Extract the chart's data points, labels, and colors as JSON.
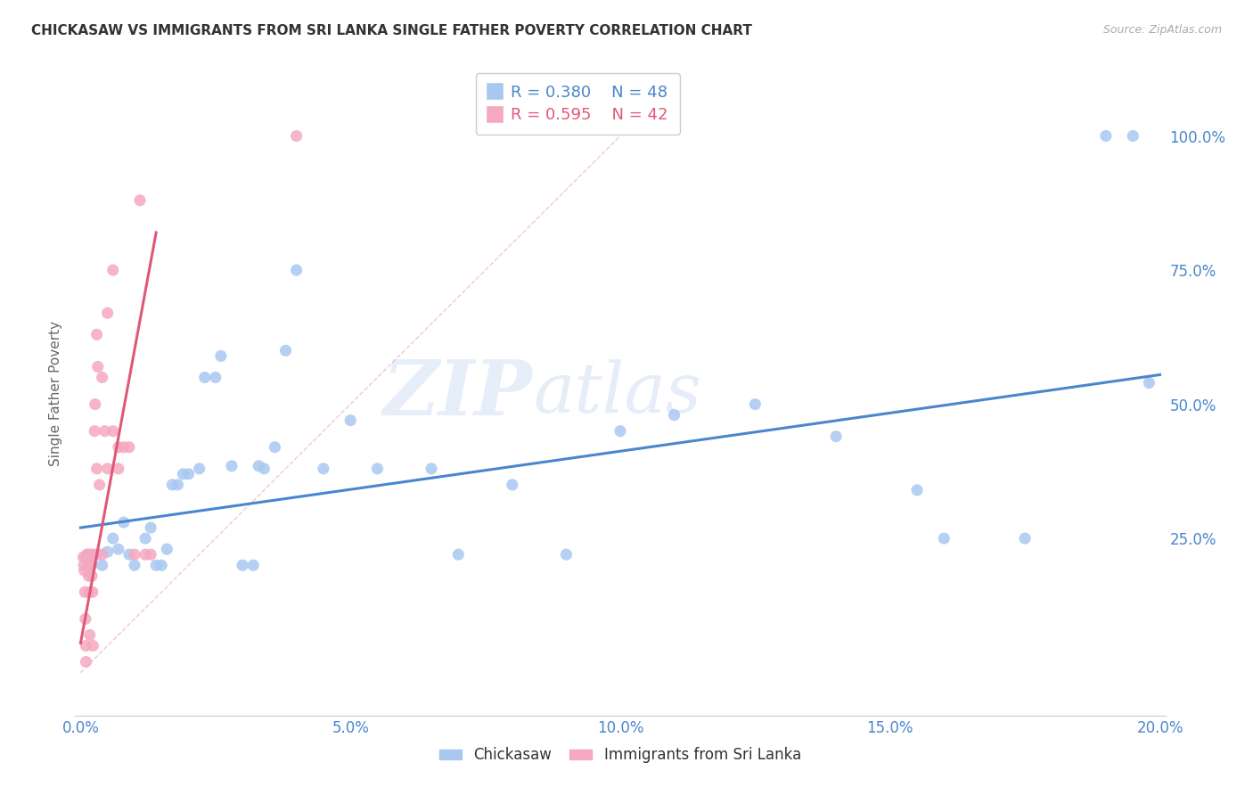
{
  "title": "CHICKASAW VS IMMIGRANTS FROM SRI LANKA SINGLE FATHER POVERTY CORRELATION CHART",
  "source": "Source: ZipAtlas.com",
  "ylabel": "Single Father Poverty",
  "blue_color": "#a8c8f0",
  "pink_color": "#f5a8c0",
  "blue_line_color": "#4a86cc",
  "pink_line_color": "#e05878",
  "ref_line_color": "#e8a0b8",
  "legend_label_blue": "Chickasaw",
  "legend_label_pink": "Immigrants from Sri Lanka",
  "xlim": [
    -0.001,
    0.201
  ],
  "ylim": [
    -0.08,
    1.12
  ],
  "xtick_values": [
    0.0,
    0.05,
    0.1,
    0.15,
    0.2
  ],
  "xtick_labels": [
    "0.0%",
    "5.0%",
    "10.0%",
    "15.0%",
    "20.0%"
  ],
  "right_ytick_values": [
    0.25,
    0.5,
    0.75,
    1.0
  ],
  "right_ytick_labels": [
    "25.0%",
    "50.0%",
    "75.0%",
    "100.0%"
  ],
  "blue_scatter_x": [
    0.001,
    0.002,
    0.003,
    0.004,
    0.005,
    0.006,
    0.007,
    0.008,
    0.009,
    0.01,
    0.012,
    0.013,
    0.014,
    0.015,
    0.016,
    0.017,
    0.018,
    0.019,
    0.02,
    0.022,
    0.023,
    0.025,
    0.026,
    0.028,
    0.03,
    0.032,
    0.033,
    0.034,
    0.036,
    0.038,
    0.04,
    0.045,
    0.05,
    0.055,
    0.065,
    0.07,
    0.08,
    0.09,
    0.1,
    0.11,
    0.125,
    0.14,
    0.155,
    0.16,
    0.175,
    0.19,
    0.195,
    0.198
  ],
  "blue_scatter_y": [
    0.215,
    0.2,
    0.22,
    0.2,
    0.225,
    0.25,
    0.23,
    0.28,
    0.22,
    0.2,
    0.25,
    0.27,
    0.2,
    0.2,
    0.23,
    0.35,
    0.35,
    0.37,
    0.37,
    0.38,
    0.55,
    0.55,
    0.59,
    0.385,
    0.2,
    0.2,
    0.385,
    0.38,
    0.42,
    0.6,
    0.75,
    0.38,
    0.47,
    0.38,
    0.38,
    0.22,
    0.35,
    0.22,
    0.45,
    0.48,
    0.5,
    0.44,
    0.34,
    0.25,
    0.25,
    1.0,
    1.0,
    0.54
  ],
  "pink_scatter_x": [
    0.0005,
    0.0006,
    0.0007,
    0.0008,
    0.0009,
    0.001,
    0.001,
    0.0012,
    0.0013,
    0.0014,
    0.0015,
    0.0016,
    0.0017,
    0.0018,
    0.0019,
    0.002,
    0.0021,
    0.0022,
    0.0023,
    0.0025,
    0.0026,
    0.0027,
    0.003,
    0.003,
    0.0032,
    0.0035,
    0.004,
    0.004,
    0.0045,
    0.005,
    0.005,
    0.006,
    0.006,
    0.007,
    0.007,
    0.008,
    0.009,
    0.01,
    0.011,
    0.012,
    0.013,
    0.04
  ],
  "pink_scatter_y": [
    0.215,
    0.2,
    0.19,
    0.15,
    0.1,
    0.05,
    0.02,
    0.22,
    0.22,
    0.2,
    0.18,
    0.15,
    0.07,
    0.22,
    0.22,
    0.2,
    0.18,
    0.15,
    0.05,
    0.22,
    0.45,
    0.5,
    0.38,
    0.63,
    0.57,
    0.35,
    0.22,
    0.55,
    0.45,
    0.38,
    0.67,
    0.45,
    0.75,
    0.38,
    0.42,
    0.42,
    0.42,
    0.22,
    0.88,
    0.22,
    0.22,
    1.0
  ],
  "blue_line_x": [
    0.0,
    0.2
  ],
  "blue_line_y": [
    0.27,
    0.555
  ],
  "pink_line_x": [
    0.0,
    0.014
  ],
  "pink_line_y": [
    0.055,
    0.82
  ],
  "ref_line_x": [
    0.0,
    0.1
  ],
  "ref_line_y": [
    0.0,
    1.0
  ]
}
